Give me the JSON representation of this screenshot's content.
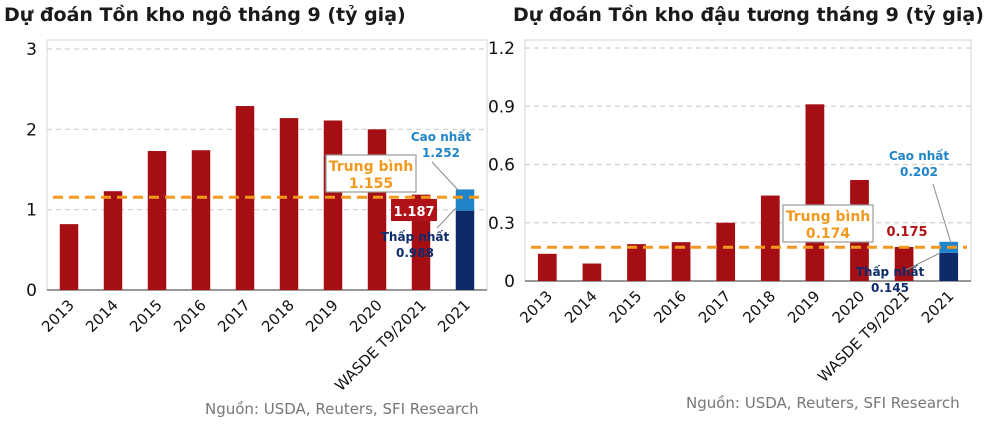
{
  "source_label": "Nguồn: USDA, Reuters, SFI Research",
  "colors": {
    "bar": "#a50f14",
    "high": "#2084c8",
    "low": "#0d2a6b",
    "avg_line": "#f39a1e",
    "label_red": "#b01217",
    "label_blue": "#2084c8",
    "label_navy": "#0d2a6b"
  },
  "chart_data": [
    {
      "type": "bar",
      "title": "Dự đoán Tồn kho ngô tháng 9 (tỷ giạ)",
      "categories": [
        "2013",
        "2014",
        "2015",
        "2016",
        "2017",
        "2018",
        "2019",
        "2020",
        "WASDE T9/2021",
        "2021"
      ],
      "values": [
        0.82,
        1.23,
        1.73,
        1.74,
        2.29,
        2.14,
        2.11,
        2.0,
        1.187,
        null
      ],
      "ylim": [
        0,
        3
      ],
      "yticks": [
        "0",
        "1",
        "2",
        "3"
      ],
      "grid": true,
      "range_2021": {
        "high": 1.252,
        "low": 0.988
      },
      "average": 1.155,
      "labels": {
        "average_title": "Trung bình",
        "average_value": "1.155",
        "wasde_value": "1.187",
        "high_title": "Cao nhất",
        "high_value": "1.252",
        "low_title": "Thấp nhất",
        "low_value": "0.988"
      }
    },
    {
      "type": "bar",
      "title": "Dự đoán Tồn kho đậu tương tháng 9 (tỷ giạ)",
      "categories": [
        "2013",
        "2014",
        "2015",
        "2016",
        "2017",
        "2018",
        "2019",
        "2020",
        "WASDE T9/2021",
        "2021"
      ],
      "values": [
        0.14,
        0.09,
        0.19,
        0.2,
        0.3,
        0.44,
        0.91,
        0.52,
        0.175,
        null
      ],
      "ylim": [
        0,
        1.2
      ],
      "yticks": [
        "0",
        "0.3",
        "0.6",
        "0.9",
        "1.2"
      ],
      "grid": true,
      "range_2021": {
        "high": 0.202,
        "low": 0.145
      },
      "average": 0.174,
      "labels": {
        "average_title": "Trung bình",
        "average_value": "0.174",
        "wasde_value": "0.175",
        "high_title": "Cao nhất",
        "high_value": "0.202",
        "low_title": "Thấp nhất",
        "low_value": "0.145"
      }
    }
  ]
}
